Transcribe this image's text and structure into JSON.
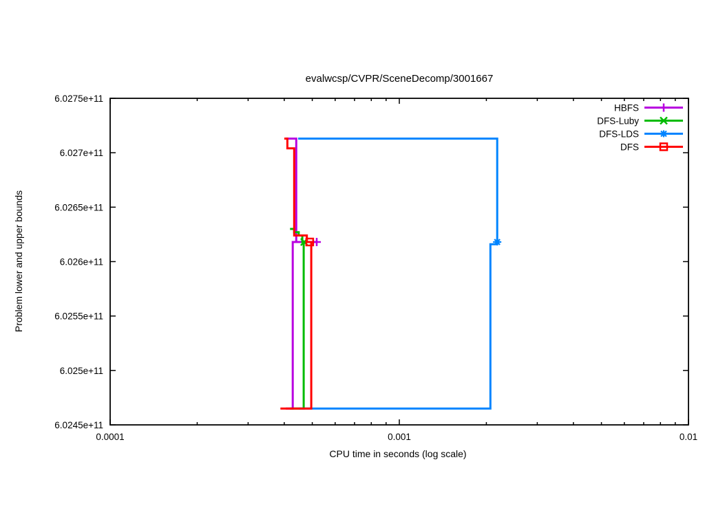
{
  "title": "evalwcsp/CVPR/SceneDecomp/3001667",
  "axes": {
    "xlabel": "CPU time in seconds (log scale)",
    "ylabel": "Problem lower and upper bounds"
  },
  "chart_data": {
    "type": "line",
    "title": "evalwcsp/CVPR/SceneDecomp/3001667",
    "xlabel": "CPU time in seconds (log scale)",
    "ylabel": "Problem lower and upper bounds",
    "x_scale": "log",
    "xlim": [
      0.0001,
      0.01
    ],
    "ylim": [
      602450000000,
      602750000000
    ],
    "grid": false,
    "legend_position": "top-right-inside",
    "x_ticks": [
      {
        "value": 0.0001,
        "label": "0.0001"
      },
      {
        "value": 0.001,
        "label": "0.001"
      },
      {
        "value": 0.01,
        "label": "0.01"
      }
    ],
    "x_minor_ticks_per_decade": [
      2,
      3,
      4,
      5,
      6,
      7,
      8,
      9
    ],
    "y_ticks": [
      {
        "value": 602450000000,
        "label": "6.0245e+11"
      },
      {
        "value": 602500000000,
        "label": "6.025e+11"
      },
      {
        "value": 602550000000,
        "label": "6.0255e+11"
      },
      {
        "value": 602600000000,
        "label": "6.026e+11"
      },
      {
        "value": 602650000000,
        "label": "6.0265e+11"
      },
      {
        "value": 602700000000,
        "label": "6.027e+11"
      },
      {
        "value": 602750000000,
        "label": "6.0275e+11"
      }
    ],
    "series": [
      {
        "name": "HBFS",
        "color": "#b800e0",
        "marker": "plus",
        "upper_bound": [
          [
            0.000405,
            602713000000
          ],
          [
            0.00044,
            602713000000
          ],
          [
            0.00044,
            602618000000
          ],
          [
            0.000518,
            602618000000
          ]
        ],
        "lower_bound": [
          [
            0.000405,
            602465000000
          ],
          [
            0.000428,
            602465000000
          ],
          [
            0.000428,
            602618000000
          ],
          [
            0.000518,
            602618000000
          ]
        ],
        "end_point": [
          0.000518,
          602618000000
        ]
      },
      {
        "name": "DFS-Luby",
        "color": "#00bb00",
        "marker": "cross",
        "upper_bound": [
          [
            0.000419,
            602630000000
          ],
          [
            0.000433,
            602630000000
          ],
          [
            0.000433,
            602627000000
          ],
          [
            0.000449,
            602627000000
          ],
          [
            0.000449,
            602624000000
          ],
          [
            0.000462,
            602624000000
          ],
          [
            0.000462,
            602618000000
          ],
          [
            0.000469,
            602618000000
          ]
        ],
        "lower_bound": [
          [
            0.000419,
            602465000000
          ],
          [
            0.000467,
            602465000000
          ],
          [
            0.000467,
            602618000000
          ],
          [
            0.000469,
            602618000000
          ]
        ],
        "end_point": [
          0.000469,
          602618000000
        ]
      },
      {
        "name": "DFS-LDS",
        "color": "#0084ff",
        "marker": "star",
        "upper_bound": [
          [
            0.000447,
            602713000000
          ],
          [
            0.00218,
            602713000000
          ],
          [
            0.00218,
            602618000000
          ]
        ],
        "lower_bound": [
          [
            0.00045,
            602465000000
          ],
          [
            0.002065,
            602465000000
          ],
          [
            0.002065,
            602616000000
          ],
          [
            0.00218,
            602616000000
          ],
          [
            0.00218,
            602618000000
          ]
        ],
        "end_point": [
          0.00218,
          602618000000
        ]
      },
      {
        "name": "DFS",
        "color": "#ff0000",
        "marker": "square",
        "upper_bound": [
          [
            0.0004,
            602713000000
          ],
          [
            0.00041,
            602713000000
          ],
          [
            0.00041,
            602704000000
          ],
          [
            0.000433,
            602704000000
          ],
          [
            0.000433,
            602624000000
          ],
          [
            0.000479,
            602624000000
          ],
          [
            0.000479,
            602618000000
          ],
          [
            0.00049,
            602618000000
          ]
        ],
        "lower_bound": [
          [
            0.000388,
            602465000000
          ],
          [
            0.000496,
            602465000000
          ],
          [
            0.000496,
            602618000000
          ],
          [
            0.00049,
            602618000000
          ]
        ],
        "end_point": [
          0.00049,
          602618000000
        ]
      }
    ]
  }
}
